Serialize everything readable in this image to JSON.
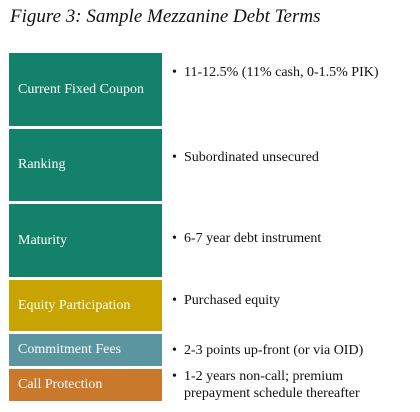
{
  "figure": {
    "title": "Figure 3: Sample Mezzanine Debt Terms"
  },
  "terms": [
    {
      "label": "Current Fixed Coupon",
      "value": "11-12.5% (11% cash, 0-1.5% PIK)",
      "color": "#14826a"
    },
    {
      "label": "Ranking",
      "value": "Subordinated unsecured",
      "color": "#14826a"
    },
    {
      "label": "Maturity",
      "value": "6-7 year debt instrument",
      "color": "#14826a"
    },
    {
      "label": "Equity Participation",
      "value": "Purchased equity",
      "color": "#c8a400"
    },
    {
      "label": "Commitment Fees",
      "value": "2-3 points up-front (or via OID)",
      "color": "#5a95a0"
    },
    {
      "label": "Call Protection",
      "value": "1-2 years non-call; premium prepayment schedule thereafter",
      "color": "#c9782c"
    }
  ],
  "bullet_symbol": "•"
}
